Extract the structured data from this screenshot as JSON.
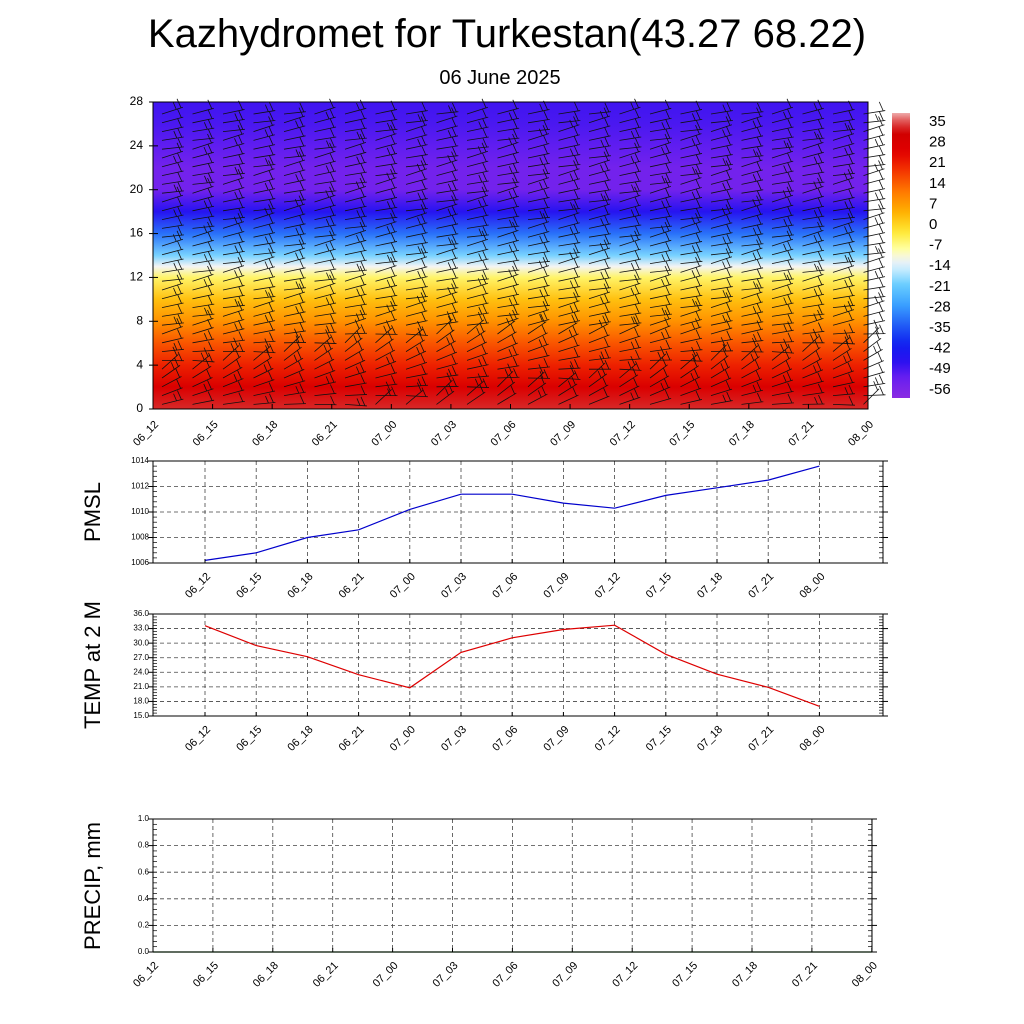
{
  "figure": {
    "title": "Kazhydromet for Turkestan(43.27 68.22)",
    "subtitle": "06 June 2025"
  },
  "chart_data": [
    {
      "type": "heatmap",
      "name": "cross-section",
      "x_tick_labels": [
        "06_12",
        "06_15",
        "06_18",
        "06_21",
        "07_00",
        "07_03",
        "07_06",
        "07_09",
        "07_12",
        "07_15",
        "07_18",
        "07_21",
        "08_00"
      ],
      "y_ticks": [
        0,
        4,
        8,
        12,
        16,
        20,
        24,
        28
      ],
      "ylim": [
        0,
        28
      ],
      "colorbar": {
        "labels": [
          "35",
          "28",
          "21",
          "14",
          "7",
          "0",
          "-7",
          "-14",
          "-21",
          "-28",
          "-35",
          "-42",
          "-49",
          "-56"
        ],
        "range": [
          -63,
          38
        ]
      },
      "temperature_profile": [
        {
          "level": 0,
          "value": 33
        },
        {
          "level": 2,
          "value": 27
        },
        {
          "level": 4,
          "value": 20
        },
        {
          "level": 6,
          "value": 14
        },
        {
          "level": 8,
          "value": 7
        },
        {
          "level": 10,
          "value": 1
        },
        {
          "level": 12,
          "value": -7
        },
        {
          "level": 13,
          "value": -14
        },
        {
          "level": 14,
          "value": -22
        },
        {
          "level": 16,
          "value": -35
        },
        {
          "level": 18,
          "value": -49
        },
        {
          "level": 20,
          "value": -58
        },
        {
          "level": 22,
          "value": -58
        },
        {
          "level": 24,
          "value": -55
        },
        {
          "level": 26,
          "value": -53
        },
        {
          "level": 28,
          "value": -52
        }
      ],
      "wind_barbs": true
    },
    {
      "type": "line",
      "name": "pmsl",
      "ylabel": "PMSL",
      "ylim": [
        1006,
        1014
      ],
      "y_ticks": [
        1006,
        1008,
        1010,
        1012,
        1014
      ],
      "categories": [
        "06_12",
        "06_15",
        "06_18",
        "06_21",
        "07_00",
        "07_03",
        "07_06",
        "07_09",
        "07_12",
        "07_15",
        "07_18",
        "07_21",
        "08_00"
      ],
      "values": [
        1006.2,
        1006.8,
        1008.0,
        1008.6,
        1010.2,
        1011.4,
        1011.4,
        1010.7,
        1010.3,
        1011.3,
        1011.9,
        1012.5,
        1013.6
      ],
      "color": "#0000cc"
    },
    {
      "type": "line",
      "name": "temp2m",
      "ylabel": "TEMP at 2 M",
      "ylim": [
        15,
        36
      ],
      "y_ticks": [
        "15.0",
        "18.0",
        "21.0",
        "24.0",
        "27.0",
        "30.0",
        "33.0",
        "36.0"
      ],
      "categories": [
        "06_12",
        "06_15",
        "06_18",
        "06_21",
        "07_00",
        "07_03",
        "07_06",
        "07_09",
        "07_12",
        "07_15",
        "07_18",
        "07_21",
        "08_00"
      ],
      "values": [
        33.6,
        29.5,
        27.2,
        23.5,
        20.8,
        28.1,
        31.1,
        32.8,
        33.7,
        27.7,
        23.6,
        20.9,
        17.0
      ],
      "color": "#dd0000"
    },
    {
      "type": "line",
      "name": "precip",
      "ylabel": "PRECIP, mm",
      "ylim": [
        0,
        1
      ],
      "y_ticks": [
        "0.0",
        "0.2",
        "0.4",
        "0.6",
        "0.8",
        "1.0"
      ],
      "categories": [
        "06_12",
        "06_15",
        "06_18",
        "06_21",
        "07_00",
        "07_03",
        "07_06",
        "07_09",
        "07_12",
        "07_15",
        "07_18",
        "07_21",
        "08_00"
      ],
      "values": [
        0,
        0,
        0,
        0,
        0,
        0,
        0,
        0,
        0,
        0,
        0,
        0,
        0
      ],
      "color": "#006600"
    }
  ]
}
